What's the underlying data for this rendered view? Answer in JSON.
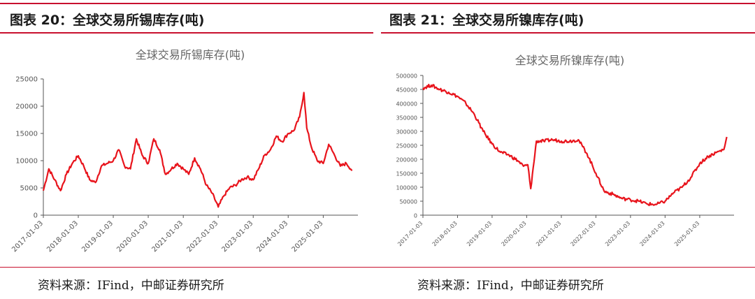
{
  "panels": [
    {
      "caption": "图表 20：全球交易所锡库存(吨)",
      "source": "资料来源：IFind，中邮证券研究所"
    },
    {
      "caption": "图表 21：全球交易所镍库存(吨)",
      "source": "资料来源：IFind，中邮证券研究所"
    }
  ],
  "colors": {
    "accent": "#c8102e",
    "series": "#e8141c"
  },
  "chart_data": [
    {
      "type": "line",
      "title": "全球交易所锡库存(吨)",
      "xlabel": "",
      "ylabel": "",
      "ylim": [
        0,
        25000
      ],
      "yticks": [
        0,
        5000,
        10000,
        15000,
        20000,
        25000
      ],
      "ytick_labels": [
        "0",
        "5000",
        "10000",
        "15000",
        "20000",
        "25000"
      ],
      "xlim": [
        "2017-01-03",
        "2025-12-31"
      ],
      "xtick_labels": [
        "2017-01-03",
        "2018-01-03",
        "2019-01-03",
        "2020-01-03",
        "2021-01-03",
        "2022-01-03",
        "2023-01-03",
        "2024-01-03",
        "2025-01-03"
      ],
      "grid": false,
      "series": [
        {
          "x": [
            "2017-01-03",
            "2017-03-01",
            "2017-05-01",
            "2017-07-01",
            "2017-09-01",
            "2017-11-01",
            "2018-01-03",
            "2018-03-01",
            "2018-05-01",
            "2018-07-01",
            "2018-09-01",
            "2018-11-01",
            "2019-01-03",
            "2019-03-01",
            "2019-05-01",
            "2019-07-01",
            "2019-09-01",
            "2019-11-01",
            "2020-01-03",
            "2020-03-01",
            "2020-05-01",
            "2020-07-01",
            "2020-09-01",
            "2020-11-01",
            "2021-01-03",
            "2021-03-01",
            "2021-05-01",
            "2021-07-01",
            "2021-09-01",
            "2021-11-01",
            "2022-01-03",
            "2022-03-01",
            "2022-05-01",
            "2022-07-01",
            "2022-09-01",
            "2022-11-01",
            "2023-01-03",
            "2023-03-01",
            "2023-05-01",
            "2023-07-01",
            "2023-09-01",
            "2023-11-01",
            "2024-01-03",
            "2024-03-01",
            "2024-05-01",
            "2024-06-15",
            "2024-07-15",
            "2024-09-01",
            "2024-11-01",
            "2025-01-03",
            "2025-03-01",
            "2025-05-01",
            "2025-07-01",
            "2025-09-01",
            "2025-11-01"
          ],
          "y": [
            4500,
            8500,
            6500,
            4500,
            7500,
            9500,
            10900,
            9000,
            6500,
            6000,
            9000,
            9500,
            10000,
            12000,
            9000,
            8500,
            14000,
            11000,
            9500,
            14000,
            12000,
            7500,
            8500,
            9500,
            8500,
            7500,
            10500,
            8500,
            5500,
            4000,
            1500,
            3500,
            5000,
            5500,
            6500,
            7000,
            6500,
            8500,
            11000,
            12000,
            14500,
            13500,
            15000,
            15500,
            18000,
            22500,
            16000,
            12500,
            10000,
            9500,
            13000,
            11000,
            9000,
            9500,
            8200
          ]
        }
      ]
    },
    {
      "type": "line",
      "title": "全球交易所镍库存(吨)",
      "xlabel": "",
      "ylabel": "",
      "ylim": [
        0,
        500000
      ],
      "yticks": [
        0,
        50000,
        100000,
        150000,
        200000,
        250000,
        300000,
        350000,
        400000,
        450000,
        500000
      ],
      "ytick_labels": [
        "0",
        "50000",
        "100000",
        "150000",
        "200000",
        "250000",
        "300000",
        "350000",
        "400000",
        "450000",
        "500000"
      ],
      "xlim": [
        "2017-01-03",
        "2025-12-31"
      ],
      "xtick_labels": [
        "2017-01-03",
        "2018-01-03",
        "2019-01-03",
        "2020-01-03",
        "2021-01-03",
        "2022-01-03",
        "2023-01-03",
        "2024-01-03",
        "2025-01-03"
      ],
      "grid": false,
      "series": [
        {
          "x": [
            "2017-01-03",
            "2017-04-01",
            "2017-07-01",
            "2017-10-01",
            "2018-01-03",
            "2018-04-01",
            "2018-07-01",
            "2018-10-01",
            "2019-01-03",
            "2019-04-01",
            "2019-07-01",
            "2019-10-01",
            "2019-12-01",
            "2020-01-15",
            "2020-02-15",
            "2020-04-15",
            "2020-07-01",
            "2020-10-01",
            "2021-01-03",
            "2021-04-01",
            "2021-07-01",
            "2021-10-01",
            "2022-01-03",
            "2022-04-01",
            "2022-07-01",
            "2022-10-01",
            "2023-01-03",
            "2023-04-01",
            "2023-07-01",
            "2023-10-01",
            "2024-01-03",
            "2024-04-01",
            "2024-07-01",
            "2024-10-01",
            "2025-01-03",
            "2025-04-01",
            "2025-07-01",
            "2025-09-15",
            "2025-10-15"
          ],
          "y": [
            455000,
            465000,
            450000,
            440000,
            425000,
            400000,
            360000,
            300000,
            255000,
            225000,
            215000,
            195000,
            175000,
            180000,
            95000,
            265000,
            265000,
            270000,
            265000,
            265000,
            270000,
            220000,
            150000,
            85000,
            75000,
            60000,
            55000,
            50000,
            40000,
            38000,
            50000,
            80000,
            100000,
            135000,
            185000,
            210000,
            225000,
            235000,
            280000
          ]
        }
      ]
    }
  ]
}
